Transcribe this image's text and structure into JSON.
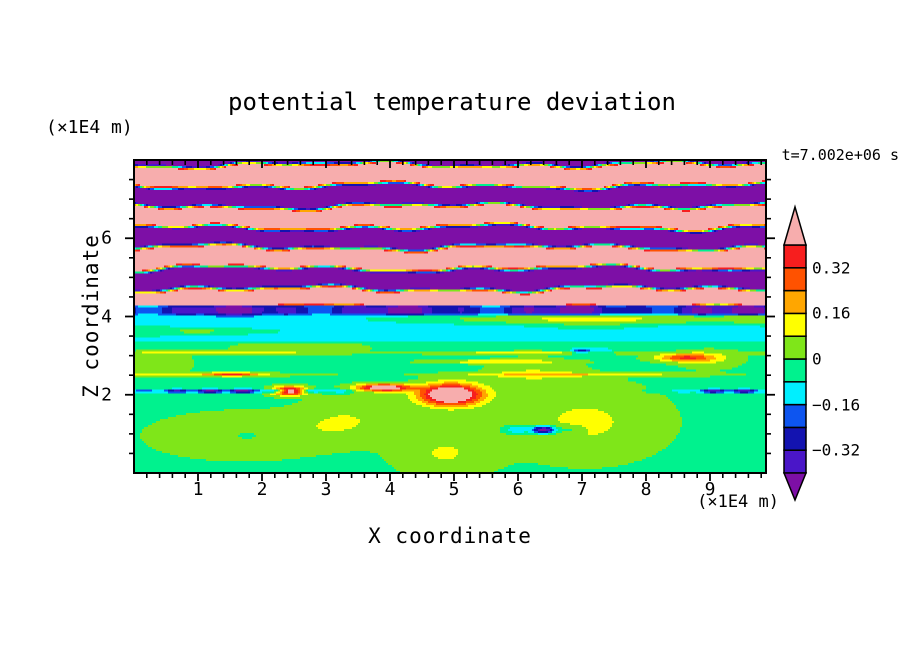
{
  "chart_data": {
    "type": "heatmap",
    "title": "potential temperature deviation",
    "xlabel": "X coordinate",
    "ylabel": "Z coordinate",
    "x_unit_label": "(×1E4 m)",
    "z_unit_label": "(×1E4 m)",
    "time_label": "t=7.002e+06 s",
    "xlim": [
      0,
      9.875
    ],
    "zlim": [
      0,
      8
    ],
    "x_major_ticks": [
      1,
      2,
      3,
      4,
      5,
      6,
      7,
      8,
      9
    ],
    "x_minor_step": 0.2,
    "z_major_ticks": [
      2,
      4,
      6
    ],
    "z_minor_step": 0.5,
    "colorbar": {
      "range": [
        -0.4,
        0.4
      ],
      "step": 0.08,
      "colors_bottom_to_top": [
        "#4A16C8",
        "#1313B0",
        "#0D55F0",
        "#00EFFF",
        "#00F28E",
        "#7FE619",
        "#FFFF00",
        "#FFA600",
        "#FF5200",
        "#F71E1E"
      ],
      "under_color": "#7D0FA6",
      "over_color": "#F7ADAD",
      "tick_labels": [
        {
          "value": 0.32,
          "label": "0.32"
        },
        {
          "value": 0.16,
          "label": "0.16"
        },
        {
          "value": 0,
          "label": "0"
        },
        {
          "value": -0.16,
          "label": "−0.16"
        },
        {
          "value": -0.32,
          "label": "−0.32"
        }
      ]
    },
    "field": {
      "description": "Stratified wave field: alternating over/under-range (pink/purple) gravity-wave bands above z≈4.3, a dark negative shear layer 4.05–4.3, a cyan layer 3.35–4.05 with a chartreuse strip on the right, and a near-zero green lower region with warm plumes near z≈2.",
      "blend_width": 0.12,
      "regions": {
        "upper_waves": {
          "z_min": 4.3,
          "offset": 0.05,
          "amplitude": 1.6,
          "z_period": 1.06,
          "phase": 0.8,
          "wobble_gain": 0.55,
          "wobble": [
            {
              "amp": 0.55,
              "x_period": 5.3,
              "z_rate": 1.7
            },
            {
              "amp": 0.45,
              "x_period": 2.1,
              "z_rate": -0.9
            },
            {
              "amp": 0.3,
              "x_period": 1.15,
              "z_rate": 2.6
            }
          ]
        },
        "dark_layer": {
          "z_range": [
            4.05,
            4.3
          ],
          "base": -0.34,
          "waves": [
            {
              "amp": 0.1,
              "x_period": 2.6,
              "phase": 1.0
            },
            {
              "amp": 0.06,
              "x_period": 0.9,
              "phase": 0.0
            }
          ]
        },
        "cyan_layer": {
          "z_range": [
            3.35,
            4.05
          ],
          "base": -0.125,
          "waves": [
            {
              "amp": 0.035,
              "x_period": 3.7,
              "phase": 2.0
            }
          ],
          "green_strip": {
            "amp": 0.2,
            "z0": 3.93,
            "sz": 0.16,
            "x_ramp_center": 4.6,
            "x_ramp_width": 0.7
          },
          "left_patch": [
            1.2,
            3.62,
            1.1,
            0.12,
            0.16
          ]
        },
        "lower": {
          "base": -0.025,
          "patches": [
            [
              1.7,
              0.95,
              1.25,
              0.52,
              0.13
            ],
            [
              1.75,
              0.95,
              0.62,
              0.28,
              -0.11
            ],
            [
              3.35,
              1.35,
              0.8,
              0.55,
              0.1
            ],
            [
              4.85,
              0.5,
              0.75,
              0.6,
              0.11
            ],
            [
              7.05,
              1.3,
              1.2,
              0.95,
              0.12
            ],
            [
              6.2,
              2.55,
              0.65,
              0.35,
              0.1
            ],
            [
              9.0,
              2.9,
              0.5,
              0.25,
              0.09
            ],
            [
              0.4,
              2.8,
              0.5,
              0.3,
              0.08
            ],
            [
              2.6,
              3.2,
              1.2,
              0.18,
              0.06
            ]
          ],
          "hot_spots": [
            [
              2.42,
              2.1,
              0.28,
              0.11,
              0.62
            ],
            [
              3.9,
              2.18,
              0.42,
              0.1,
              0.58
            ],
            [
              4.95,
              2.0,
              0.48,
              0.28,
              0.7
            ],
            [
              1.55,
              2.53,
              0.35,
              0.05,
              0.28
            ],
            [
              8.6,
              2.95,
              0.45,
              0.1,
              0.33
            ],
            [
              5.6,
              2.85,
              1.0,
              0.05,
              0.16
            ]
          ],
          "yellow_lines": [
            [
              2.52,
              0.05,
              0.15,
              6.3,
              1.0
            ],
            [
              3.07,
              0.045,
              0.14,
              4.9,
              0.0
            ]
          ],
          "dark_dashes": [
            [
              1.6,
              2.1,
              1.55,
              0.05,
              -0.5
            ],
            [
              9.3,
              2.1,
              0.7,
              0.05,
              -0.45
            ],
            [
              7.1,
              3.12,
              0.3,
              0.08,
              -0.32
            ],
            [
              6.35,
              1.1,
              0.4,
              0.1,
              -0.5
            ]
          ],
          "dash_ripple": {
            "amp": 0.3,
            "freq": 12
          }
        }
      }
    }
  }
}
